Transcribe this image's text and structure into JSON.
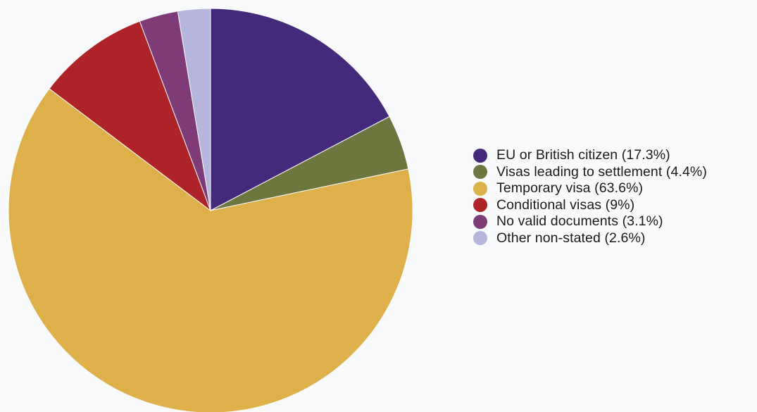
{
  "chart_data": {
    "type": "pie",
    "title": "",
    "legend_position": "right",
    "start_angle": "top, clockwise",
    "slices": [
      {
        "label": "EU or British citizen (17.3%)",
        "value": 17.3,
        "color": "#452a7c"
      },
      {
        "label": "Visas leading to settlement (4.4%)",
        "value": 4.4,
        "color": "#6e7640"
      },
      {
        "label": "Temporary visa (63.6%)",
        "value": 63.6,
        "color": "#deb04a"
      },
      {
        "label": "Conditional visas (9%)",
        "value": 9,
        "color": "#ae2327"
      },
      {
        "label": "No valid documents (3.1%)",
        "value": 3.1,
        "color": "#7e3b78"
      },
      {
        "label": "Other non-stated (2.6%)",
        "value": 2.6,
        "color": "#b5b5dd"
      }
    ]
  }
}
